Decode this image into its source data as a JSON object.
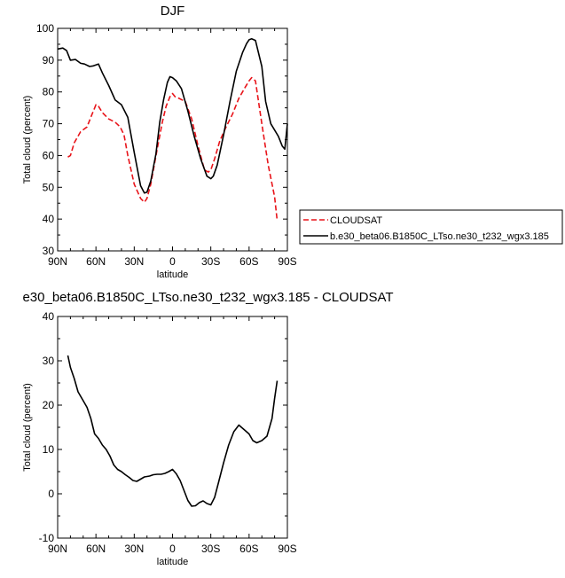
{
  "chart_data": [
    {
      "type": "line",
      "title": "DJF",
      "xlabel": "latitude",
      "ylabel": "Total cloud (percent)",
      "x_ticks": [
        "90N",
        "60N",
        "30N",
        "0",
        "30S",
        "60S",
        "90S"
      ],
      "y_ticks": [
        "30",
        "40",
        "50",
        "60",
        "70",
        "80",
        "90",
        "100"
      ],
      "xlim": [
        90,
        -90
      ],
      "ylim": [
        30,
        100
      ],
      "grid": false,
      "legend": "outside-right",
      "legend_entries": [
        "CLOUDSAT",
        "b.e30_beta06.B1850C_LTso.ne30_t232_wgx3.185"
      ],
      "series": [
        {
          "name": "CLOUDSAT",
          "color": "#e8141a",
          "dash": "dashed",
          "x": [
            82,
            80,
            77,
            72,
            67,
            63,
            60,
            58,
            55,
            50,
            45,
            41,
            38,
            35,
            30,
            25,
            22,
            20,
            17,
            12,
            8,
            5,
            2,
            0,
            -2,
            -5,
            -10,
            -15,
            -20,
            -25,
            -28,
            -30,
            -33,
            -37,
            -42,
            -47,
            -52,
            -57,
            -60,
            -62,
            -65,
            -70,
            -75,
            -80,
            -82
          ],
          "y": [
            59.5,
            60,
            64,
            67.5,
            69,
            73,
            76,
            75.5,
            73.5,
            71.5,
            70.5,
            69,
            66.5,
            60,
            51,
            46.5,
            45.3,
            46.5,
            51,
            62,
            70.5,
            75.5,
            78.5,
            79.5,
            78.5,
            78,
            77,
            71.5,
            63,
            55.5,
            54.8,
            55.5,
            59,
            64.5,
            69,
            73,
            78,
            81.5,
            83.5,
            84.5,
            83.5,
            70,
            57,
            47,
            39.5
          ]
        },
        {
          "name": "b.e30_beta06.B1850C_LTso.ne30_t232_wgx3.185",
          "color": "#000000",
          "dash": "solid",
          "x": [
            90,
            86,
            83,
            80,
            76,
            72,
            69,
            65,
            62,
            58,
            55,
            50,
            45,
            40,
            35,
            30,
            25,
            22,
            20,
            17,
            13,
            10,
            7,
            4,
            2,
            0,
            -3,
            -7,
            -12,
            -17,
            -22,
            -27,
            -30,
            -32,
            -35,
            -40,
            -45,
            -50,
            -55,
            -58,
            -60,
            -62,
            -65,
            -70,
            -73,
            -77,
            -80,
            -83,
            -86,
            -88,
            -90
          ],
          "y": [
            93.5,
            93.8,
            93,
            90,
            90.2,
            89,
            88.8,
            88,
            88.2,
            88.8,
            86,
            82,
            77.5,
            76,
            72,
            61,
            50.5,
            48.2,
            48.5,
            52,
            60.5,
            70.5,
            77.5,
            83,
            84.8,
            84.5,
            83.5,
            81,
            74,
            66,
            59,
            53.5,
            52.7,
            53.5,
            57,
            66.5,
            77,
            86.5,
            92.5,
            95.2,
            96.4,
            96.7,
            96.2,
            88,
            77,
            70,
            68,
            66,
            63,
            62,
            70
          ]
        }
      ]
    },
    {
      "type": "line",
      "title": "e30_beta06.B1850C_LTso.ne30_t232_wgx3.185 - CLOUDSAT",
      "xlabel": "latitude",
      "ylabel": "Total cloud (percent)",
      "x_ticks": [
        "90N",
        "60N",
        "30N",
        "0",
        "30S",
        "60S",
        "90S"
      ],
      "y_ticks": [
        "-10",
        "0",
        "10",
        "20",
        "30",
        "40"
      ],
      "xlim": [
        90,
        -90
      ],
      "ylim": [
        -10,
        40
      ],
      "grid": false,
      "series": [
        {
          "color": "#000000",
          "dash": "solid",
          "x": [
            82,
            80,
            77,
            74,
            70,
            67,
            64,
            61,
            58,
            55,
            52,
            49,
            46,
            43,
            40,
            37,
            34,
            31,
            28,
            25,
            22,
            18,
            15,
            12,
            9,
            6,
            3,
            0,
            -3,
            -6,
            -8,
            -10,
            -12,
            -15,
            -18,
            -21,
            -24,
            -27,
            -30,
            -33,
            -36,
            -40,
            -44,
            -48,
            -52,
            -56,
            -60,
            -63,
            -66,
            -70,
            -74,
            -78,
            -80,
            -82
          ],
          "y": [
            31.2,
            28.5,
            26,
            23,
            21,
            19.5,
            17,
            13.5,
            12.5,
            11,
            10,
            8.5,
            6.5,
            5.5,
            5,
            4.3,
            3.7,
            3,
            2.8,
            3.3,
            3.8,
            4,
            4.3,
            4.4,
            4.4,
            4.6,
            5,
            5.5,
            4.5,
            3,
            1.5,
            0,
            -1.5,
            -2.8,
            -2.7,
            -2,
            -1.6,
            -2.2,
            -2.5,
            -0.8,
            2.5,
            7,
            11,
            14,
            15.5,
            14.5,
            13.5,
            12,
            11.5,
            12,
            13,
            17,
            21.5,
            25.5
          ]
        }
      ]
    }
  ]
}
